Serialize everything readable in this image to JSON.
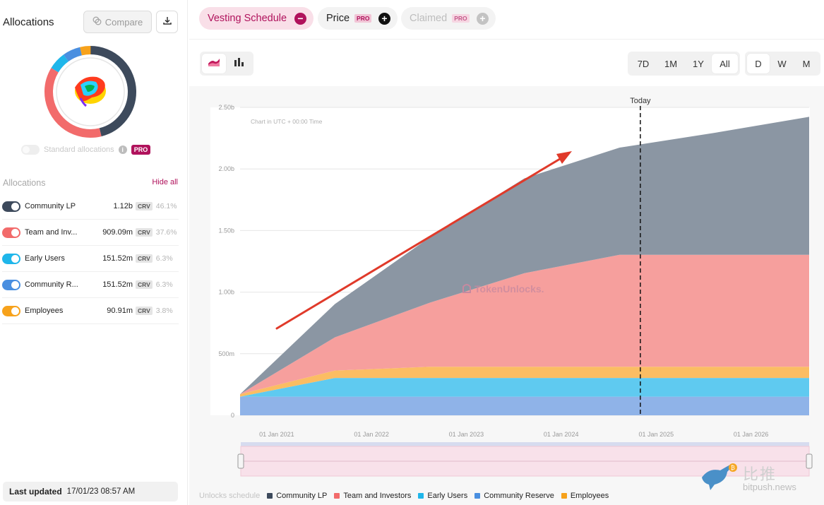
{
  "sidebar": {
    "title": "Allocations",
    "compare_label": "Compare",
    "standard_allocations_label": "Standard allocations",
    "pro_label": "PRO",
    "allocations_label": "Allocations",
    "hide_all_label": "Hide all",
    "items": [
      {
        "name": "Community LP",
        "amount": "1.12b",
        "token": "CRV",
        "percent": "46.1%",
        "color": "#3d4a5c"
      },
      {
        "name": "Team and Inv...",
        "amount": "909.09m",
        "token": "CRV",
        "percent": "37.6%",
        "color": "#f26b6b"
      },
      {
        "name": "Early Users",
        "amount": "151.52m",
        "token": "CRV",
        "percent": "6.3%",
        "color": "#1fb6ea"
      },
      {
        "name": "Community R...",
        "amount": "151.52m",
        "token": "CRV",
        "percent": "6.3%",
        "color": "#4a8fe0"
      },
      {
        "name": "Employees",
        "amount": "90.91m",
        "token": "CRV",
        "percent": "3.8%",
        "color": "#f7a21b"
      }
    ],
    "last_updated_label": "Last updated",
    "last_updated_value": "17/01/23 08:57 AM"
  },
  "tabs": [
    {
      "label": "Vesting Schedule",
      "badge": "",
      "action": "−"
    },
    {
      "label": "Price",
      "badge": "PRO",
      "action": "+"
    },
    {
      "label": "Claimed",
      "badge": "PRO",
      "action": "+"
    }
  ],
  "range_buttons": [
    "7D",
    "1M",
    "1Y",
    "All"
  ],
  "range_selected": "All",
  "interval_buttons": [
    "D",
    "W",
    "M"
  ],
  "interval_selected": "D",
  "chart_data": {
    "type": "area",
    "stacked": true,
    "note": "Chart in UTC + 00:00 Time",
    "today_label": "Today",
    "x": [
      "2020-08-13",
      "2021-08-13",
      "2022-08-13",
      "2023-08-13",
      "2024-08-13",
      "2025-08-13",
      "2026-08-13"
    ],
    "x_tick_labels": [
      "01 Jan 2021",
      "01 Jan 2022",
      "01 Jan 2023",
      "01 Jan 2024",
      "01 Jan 2025",
      "01 Jan 2026"
    ],
    "y_tick_labels": [
      "0",
      "500m",
      "1.00b",
      "1.50b",
      "2.00b",
      "2.50b"
    ],
    "ylim": [
      0,
      2500000000
    ],
    "today": "2024-11-01",
    "series": [
      {
        "name": "Community Reserve",
        "color": "#8fb3e8",
        "values": [
          151520000,
          151520000,
          151520000,
          151520000,
          151520000,
          151520000,
          151520000
        ]
      },
      {
        "name": "Early Users",
        "color": "#5fcaf0",
        "values": [
          0,
          151520000,
          151520000,
          151520000,
          151520000,
          151520000,
          151520000
        ]
      },
      {
        "name": "Employees",
        "color": "#fbbd63",
        "values": [
          20000000,
          60000000,
          90910000,
          90910000,
          90910000,
          90910000,
          90910000
        ]
      },
      {
        "name": "Team and Investors",
        "color": "#f69f9d",
        "values": [
          0,
          270000000,
          520000000,
          760000000,
          909090000,
          909090000,
          909090000
        ]
      },
      {
        "name": "Community LP",
        "color": "#8b96a3",
        "values": [
          0,
          270000000,
          530000000,
          770000000,
          870000000,
          990000000,
          1120000000
        ]
      }
    ],
    "watermark": "TokenUnlocks."
  },
  "legend": {
    "lead": "Unlocks schedule",
    "items": [
      {
        "name": "Community LP",
        "color": "#3d4a5c"
      },
      {
        "name": "Team and Investors",
        "color": "#f26b6b"
      },
      {
        "name": "Early Users",
        "color": "#1fb6ea"
      },
      {
        "name": "Community Reserve",
        "color": "#4a8fe0"
      },
      {
        "name": "Employees",
        "color": "#f7a21b"
      }
    ]
  },
  "site_watermark": {
    "title": "比推",
    "subtitle": "bitpush.news"
  }
}
